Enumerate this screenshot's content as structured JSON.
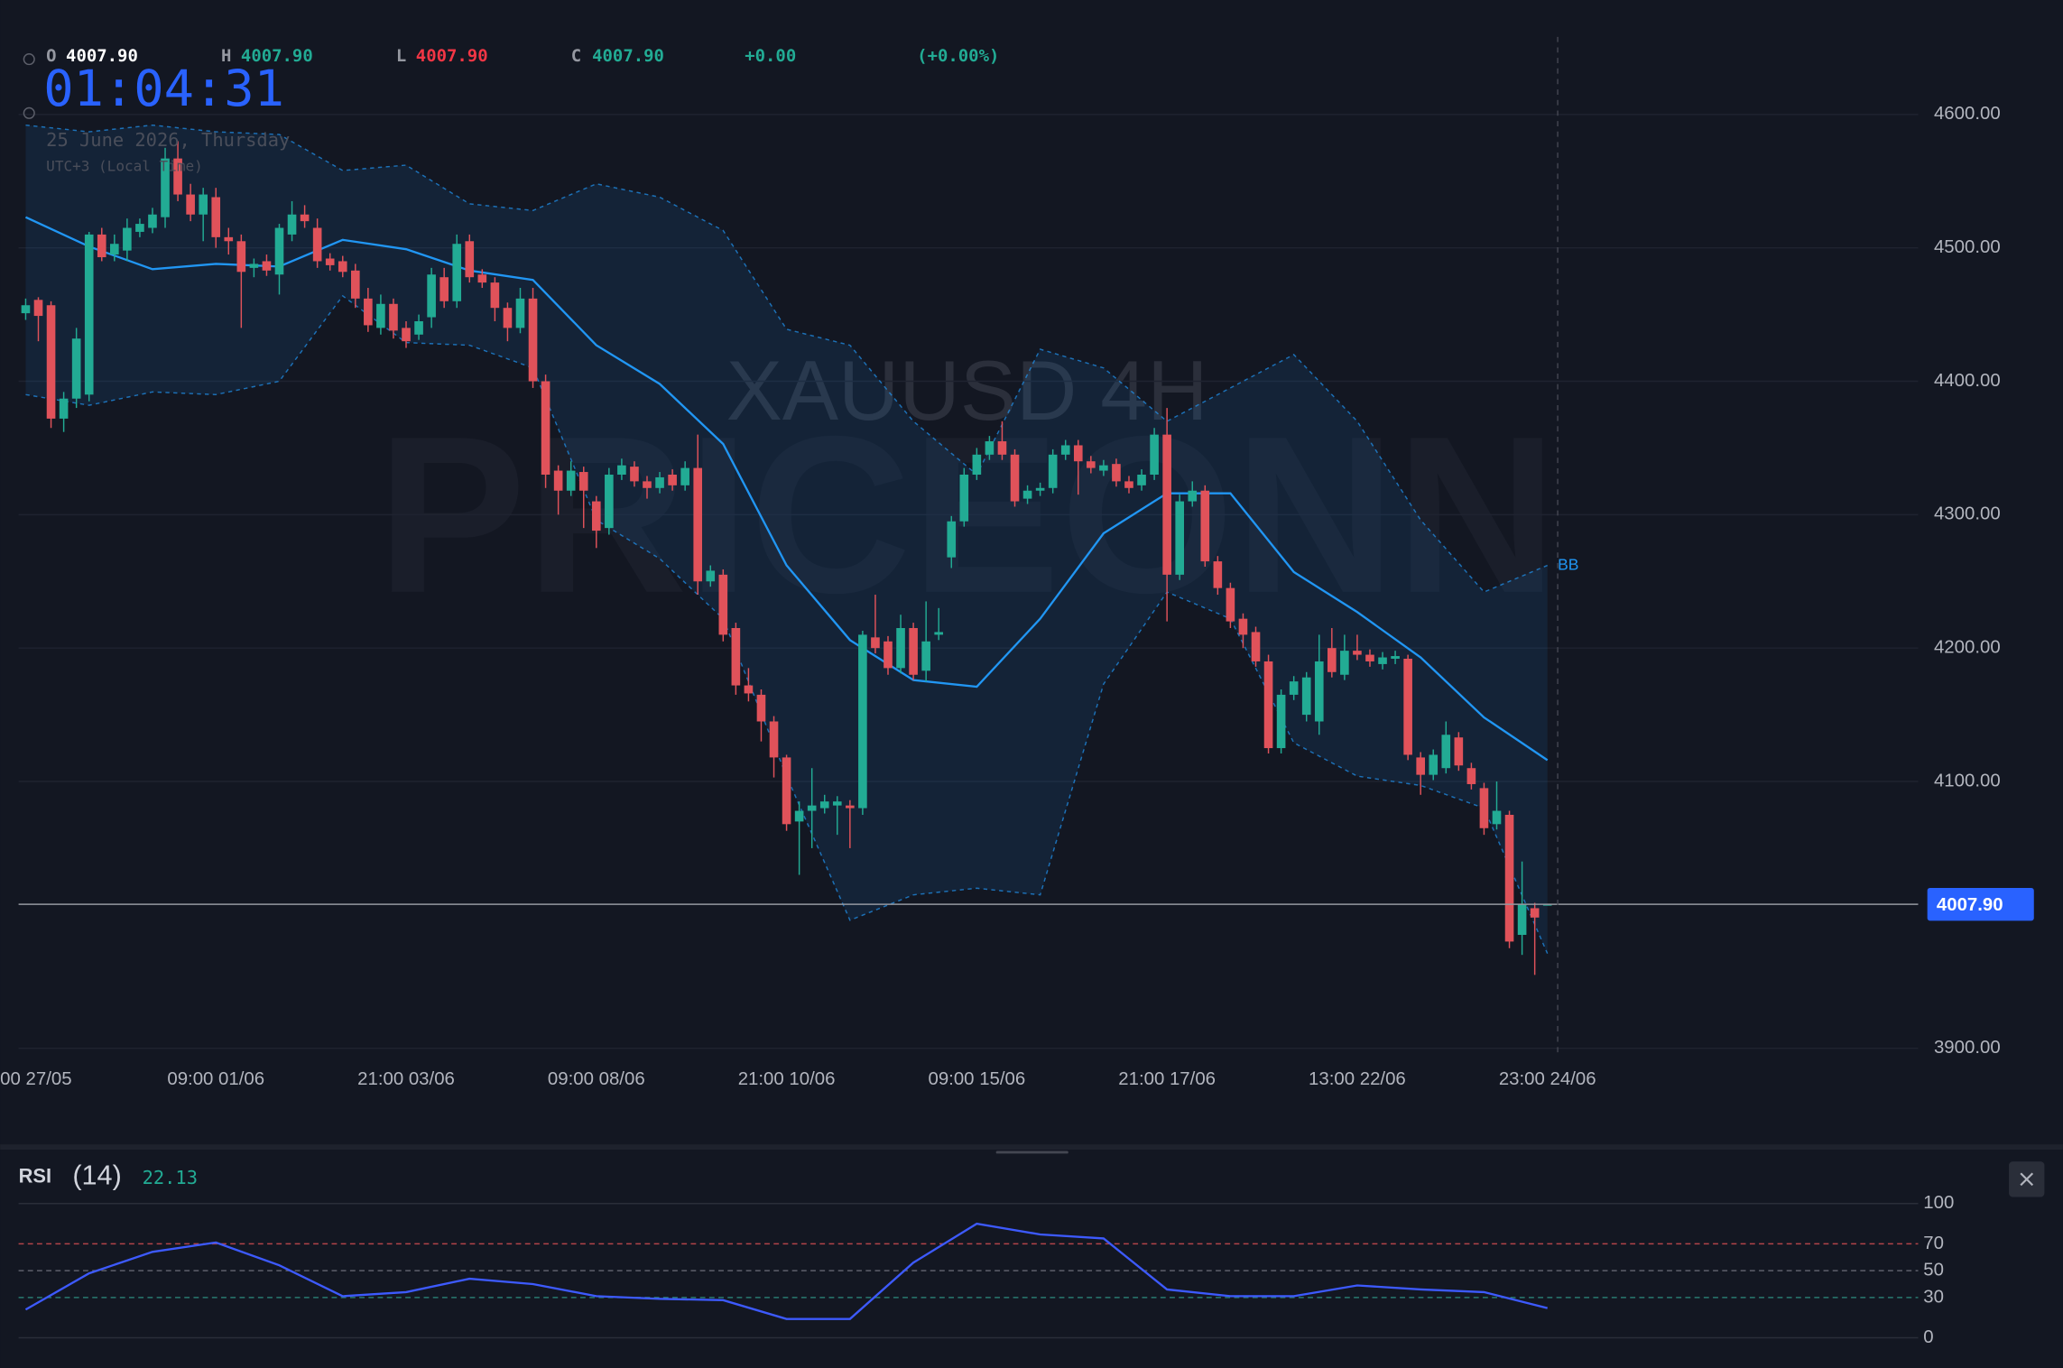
{
  "header": {
    "open_label": "O",
    "open": "4007.90",
    "high_label": "H",
    "high": "4007.90",
    "low_label": "L",
    "low": "4007.90",
    "close_label": "C",
    "close": "4007.90",
    "change": "+0.00",
    "change_pct": "(+0.00%)",
    "clock": "01:04:31",
    "date": "25 June 2026, Thursday",
    "timezone": "UTC+3 (Local Time)",
    "watermark_symbol": "XAUUSD 4H",
    "watermark_brand": "PRICEONN"
  },
  "chart_data": [
    {
      "type": "candlestick",
      "categories": [
        "00 27/05",
        null,
        null,
        null,
        null,
        null,
        null,
        null,
        null,
        null,
        null,
        null,
        null,
        null,
        null,
        "09:00 01/06",
        null,
        null,
        null,
        null,
        null,
        null,
        null,
        null,
        null,
        null,
        null,
        null,
        null,
        null,
        "21:00 03/06",
        null,
        null,
        null,
        null,
        null,
        null,
        null,
        null,
        null,
        null,
        null,
        null,
        null,
        null,
        "09:00 08/06",
        null,
        null,
        null,
        null,
        null,
        null,
        null,
        null,
        null,
        null,
        null,
        null,
        null,
        null,
        "21:00 10/06",
        null,
        null,
        null,
        null,
        null,
        null,
        null,
        null,
        null,
        null,
        null,
        null,
        null,
        null,
        "09:00 15/06",
        null,
        null,
        null,
        null,
        null,
        null,
        null,
        null,
        null,
        null,
        null,
        null,
        null,
        null,
        "21:00 17/06",
        null,
        null,
        null,
        null,
        null,
        null,
        null,
        null,
        null,
        null,
        null,
        null,
        null,
        null,
        "13:00 22/06",
        null,
        null,
        null,
        null,
        null,
        null,
        null,
        null,
        null,
        null,
        null,
        null,
        null,
        null,
        "23:00 24/06"
      ],
      "open": [
        4451,
        4461,
        4457,
        4372,
        4387,
        4390,
        4510,
        4495,
        4498,
        4512,
        4515,
        4523,
        4567,
        4540,
        4525,
        4538,
        4508,
        4505,
        4485,
        4490,
        4480,
        4510,
        4525,
        4515,
        4492,
        4490,
        4483,
        4462,
        4440,
        4458,
        4440,
        4435,
        4448,
        4478,
        4460,
        4505,
        4480,
        4474,
        4455,
        4440,
        4462,
        4400,
        4333,
        4318,
        4332,
        4310,
        4290,
        4330,
        4336,
        4325,
        4320,
        4330,
        4322,
        4335,
        4250,
        4255,
        4215,
        4172,
        4165,
        4145,
        4118,
        4070,
        4078,
        4080,
        4082,
        4082,
        4080,
        4208,
        4205,
        4185,
        4215,
        4183,
        4210,
        4268,
        4295,
        4330,
        4345,
        4355,
        4345,
        4312,
        4318,
        4320,
        4345,
        4352,
        4340,
        4333,
        4338,
        4325,
        4322,
        4330,
        4360,
        4255,
        4310,
        4318,
        4265,
        4245,
        4222,
        4212,
        4190,
        4125,
        4165,
        4150,
        4145,
        4200,
        4180,
        4198,
        4195,
        4188,
        4192,
        4192,
        4118,
        4105,
        4110,
        4133,
        4110,
        4095,
        4068,
        4075,
        3985,
        4005,
        4007.9
      ],
      "high": [
        4462,
        4463,
        4460,
        4392,
        4440,
        4512,
        4515,
        4510,
        4522,
        4522,
        4530,
        4575,
        4580,
        4548,
        4545,
        4545,
        4515,
        4510,
        4492,
        4495,
        4518,
        4535,
        4532,
        4522,
        4496,
        4494,
        4488,
        4470,
        4465,
        4462,
        4445,
        4450,
        4485,
        4485,
        4510,
        4510,
        4484,
        4478,
        4459,
        4470,
        4470,
        4405,
        4337,
        4340,
        4336,
        4314,
        4335,
        4342,
        4340,
        4329,
        4332,
        4334,
        4340,
        4360,
        4262,
        4259,
        4219,
        4185,
        4169,
        4149,
        4120,
        4085,
        4110,
        4090,
        4089,
        4086,
        4213,
        4240,
        4209,
        4225,
        4219,
        4235,
        4230,
        4299,
        4335,
        4350,
        4359,
        4370,
        4349,
        4322,
        4324,
        4349,
        4356,
        4356,
        4344,
        4341,
        4342,
        4329,
        4334,
        4365,
        4380,
        4315,
        4325,
        4322,
        4269,
        4249,
        4226,
        4216,
        4195,
        4169,
        4179,
        4182,
        4210,
        4215,
        4210,
        4210,
        4199,
        4197,
        4198,
        4195,
        4122,
        4124,
        4145,
        4137,
        4114,
        4099,
        4100,
        4078,
        4040,
        4009,
        4007.9
      ],
      "low": [
        4446,
        4430,
        4365,
        4362,
        4380,
        4385,
        4490,
        4490,
        4490,
        4508,
        4511,
        4515,
        4535,
        4520,
        4505,
        4500,
        4495,
        4440,
        4478,
        4479,
        4465,
        4505,
        4515,
        4485,
        4483,
        4478,
        4455,
        4437,
        4435,
        4432,
        4425,
        4431,
        4440,
        4455,
        4455,
        4474,
        4470,
        4445,
        4430,
        4436,
        4395,
        4320,
        4300,
        4314,
        4290,
        4275,
        4285,
        4326,
        4321,
        4312,
        4316,
        4318,
        4318,
        4240,
        4246,
        4205,
        4165,
        4160,
        4130,
        4103,
        4063,
        4030,
        4050,
        4076,
        4060,
        4050,
        4075,
        4196,
        4180,
        4181,
        4176,
        4175,
        4206,
        4260,
        4291,
        4326,
        4341,
        4341,
        4306,
        4308,
        4314,
        4316,
        4341,
        4315,
        4331,
        4329,
        4321,
        4316,
        4318,
        4326,
        4220,
        4251,
        4306,
        4261,
        4240,
        4215,
        4200,
        4186,
        4121,
        4121,
        4161,
        4145,
        4135,
        4178,
        4176,
        4191,
        4186,
        4184,
        4188,
        4116,
        4090,
        4101,
        4106,
        4108,
        4094,
        4060,
        4064,
        3975,
        3970,
        3955,
        4007.9
      ],
      "close": [
        4457,
        4449,
        4372,
        4387,
        4432,
        4510,
        4493,
        4503,
        4515,
        4518,
        4525,
        4567,
        4540,
        4525,
        4540,
        4508,
        4505,
        4482,
        4488,
        4483,
        4515,
        4525,
        4520,
        4490,
        4487,
        4482,
        4462,
        4442,
        4458,
        4438,
        4430,
        4445,
        4480,
        4460,
        4503,
        4478,
        4474,
        4455,
        4440,
        4462,
        4400,
        4330,
        4318,
        4333,
        4318,
        4288,
        4330,
        4337,
        4325,
        4320,
        4328,
        4322,
        4335,
        4250,
        4258,
        4210,
        4172,
        4166,
        4145,
        4118,
        4068,
        4078,
        4082,
        4085,
        4085,
        4080,
        4210,
        4200,
        4185,
        4215,
        4180,
        4205,
        4212,
        4295,
        4330,
        4345,
        4355,
        4345,
        4310,
        4318,
        4320,
        4345,
        4352,
        4340,
        4335,
        4337,
        4325,
        4320,
        4330,
        4360,
        4255,
        4310,
        4318,
        4265,
        4245,
        4220,
        4210,
        4190,
        4125,
        4165,
        4175,
        4178,
        4190,
        4182,
        4198,
        4195,
        4190,
        4193,
        4194,
        4120,
        4105,
        4120,
        4135,
        4112,
        4098,
        4065,
        4078,
        3980,
        4008,
        3998,
        4007.9
      ],
      "up_color": "#22ab94",
      "down_color": "#e0525a",
      "ylim": [
        3895,
        4665
      ],
      "yticks": [
        {
          "value": 4600,
          "label": "4600.00"
        },
        {
          "value": 4500,
          "label": "4500.00"
        },
        {
          "value": 4400,
          "label": "4400.00"
        },
        {
          "value": 4300,
          "label": "4300.00"
        },
        {
          "value": 4200,
          "label": "4200.00"
        },
        {
          "value": 4100,
          "label": "4100.00"
        },
        {
          "value": 3900,
          "label": "3900.00"
        }
      ],
      "grid": true,
      "last_price": {
        "value": 4007.9,
        "label": "4007.90"
      },
      "bands": {
        "label": "BB",
        "color": "#2196f3",
        "x": [
          0,
          5,
          10,
          15,
          20,
          25,
          30,
          35,
          40,
          45,
          50,
          55,
          60,
          65,
          70,
          75,
          80,
          85,
          90,
          95,
          100,
          105,
          110,
          115,
          120
        ],
        "upper": [
          4592,
          4587,
          4592,
          4587,
          4585,
          4558,
          4562,
          4533,
          4528,
          4548,
          4538,
          4513,
          4439,
          4427,
          4370,
          4330,
          4424,
          4410,
          4370,
          4395,
          4420,
          4370,
          4296,
          4242,
          4262
        ],
        "middle": [
          4523,
          4501,
          4484,
          4488,
          4486,
          4506,
          4499,
          4483,
          4476,
          4427,
          4398,
          4353,
          4262,
          4206,
          4176,
          4171,
          4222,
          4286,
          4316,
          4316,
          4257,
          4227,
          4193,
          4148,
          4116
        ],
        "lower": [
          4390,
          4382,
          4392,
          4390,
          4400,
          4464,
          4429,
          4427,
          4410,
          4296,
          4267,
          4222,
          4104,
          3996,
          4015,
          4020,
          4015,
          4173,
          4242,
          4222,
          4129,
          4104,
          4097,
          4080,
          3971
        ]
      }
    },
    {
      "type": "line",
      "title": "RSI",
      "period": "(14)",
      "last_value": 22.13,
      "color": "#3d5afe",
      "x": [
        0,
        5,
        10,
        15,
        20,
        25,
        30,
        35,
        40,
        45,
        50,
        55,
        60,
        65,
        70,
        75,
        80,
        85,
        90,
        95,
        100,
        105,
        110,
        115,
        120
      ],
      "values": [
        21,
        48,
        64,
        71,
        54,
        31,
        34,
        44,
        40,
        31,
        29,
        28,
        14,
        14,
        56,
        85,
        77,
        74,
        36,
        31,
        31,
        39,
        36,
        34,
        22.13
      ],
      "ylim": [
        0,
        100
      ],
      "yticks": [
        100,
        70,
        50,
        30,
        0
      ],
      "tick_line_colors": [
        "#2a2e39",
        "#b2434a",
        "#5d606b",
        "#2a7a70",
        "#2a2e39"
      ],
      "tick_line_dashed": [
        false,
        true,
        true,
        true,
        false
      ]
    }
  ]
}
